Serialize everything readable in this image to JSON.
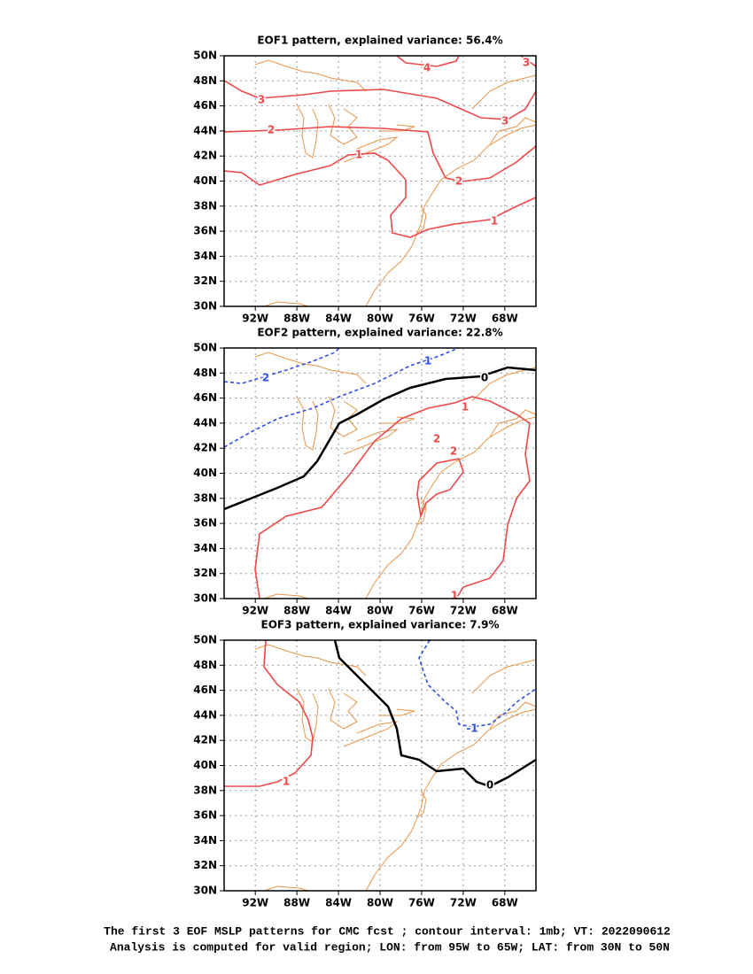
{
  "panels": [
    {
      "title": "EOF1 pattern, explained variance: 56.4%",
      "contour_labels": [
        "4",
        "3",
        "3",
        "3",
        "2",
        "2",
        "1",
        "1"
      ]
    },
    {
      "title": "EOF2 pattern, explained variance: 22.8%",
      "contour_labels": [
        "2",
        "1",
        "0",
        "1",
        "1",
        "2",
        "2"
      ]
    },
    {
      "title": "EOF3 pattern, explained variance: 7.9%",
      "contour_labels": [
        "1",
        "0",
        "-1"
      ]
    }
  ],
  "lat_labels": [
    "30N",
    "32N",
    "34N",
    "36N",
    "38N",
    "40N",
    "42N",
    "44N",
    "46N",
    "48N",
    "50N"
  ],
  "lon_labels": [
    "92W",
    "88W",
    "84W",
    "80W",
    "76W",
    "72W",
    "68W"
  ],
  "caption": [
    "The first 3 EOF MSLP patterns for CMC fcst ; contour interval: 1mb; VT: 2022090612",
    "Analysis is computed for valid region; LON: from 95W to 65W; LAT: from 30N to 50N"
  ]
}
